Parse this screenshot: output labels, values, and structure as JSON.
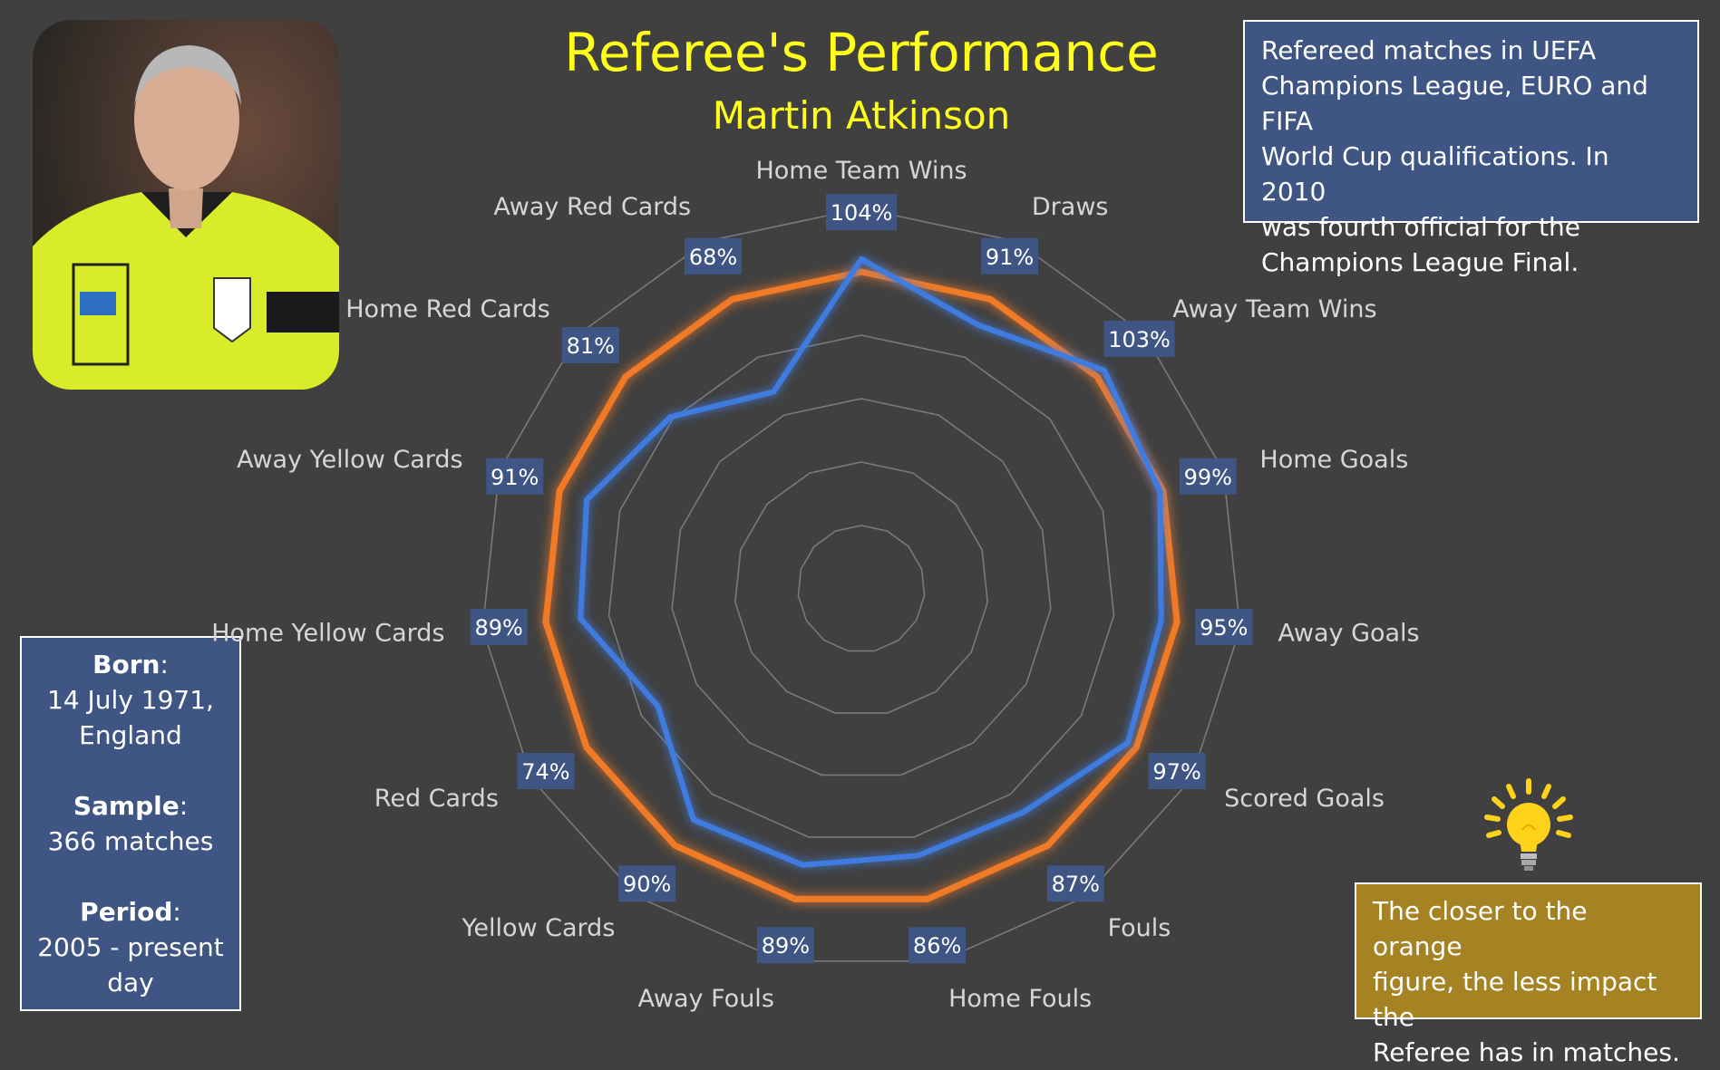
{
  "header": {
    "title": "Referee's Performance",
    "subtitle": "Martin Atkinson"
  },
  "info_box": {
    "lines": [
      "Refereed matches in UEFA",
      "Champions League, EURO and FIFA",
      "World Cup qualifications. In 2010",
      "was fourth official for the",
      "Champions League Final."
    ]
  },
  "bio": {
    "born_label": "Born",
    "born_value_line1": "14 July 1971,",
    "born_value_line2": "England",
    "sample_label": "Sample",
    "sample_value": "366 matches",
    "period_label": "Period",
    "period_value_line1": "2005 - present",
    "period_value_line2": "day"
  },
  "tip": {
    "lines": [
      "The closer to the orange",
      "figure, the less impact the",
      "Referee has in matches."
    ]
  },
  "colors": {
    "referee_line": "#3f7be0",
    "reference_line": "#f07a26",
    "label_box": "#3f5584",
    "title": "#ffff1a"
  },
  "chart_data": {
    "type": "radar",
    "categories": [
      "Home Team Wins",
      "Draws",
      "Away Team Wins",
      "Home Goals",
      "Away Goals",
      "Scored Goals",
      "Fouls",
      "Home Fouls",
      "Away Fouls",
      "Yellow Cards",
      "Red Cards",
      "Home Yellow Cards",
      "Away Yellow Cards",
      "Home Red Cards",
      "Away Red Cards"
    ],
    "series": [
      {
        "color": "#3f7be0",
        "values": [
          104,
          91,
          103,
          99,
          95,
          97,
          87,
          86,
          89,
          90,
          74,
          89,
          91,
          81,
          68
        ],
        "labels": [
          "104%",
          "91%",
          "103%",
          "99%",
          "95%",
          "97%",
          "87%",
          "86%",
          "89%",
          "90%",
          "74%",
          "89%",
          "91%",
          "81%",
          "68%"
        ]
      },
      {
        "color": "#f07a26",
        "values": [
          100,
          100,
          100,
          100,
          100,
          100,
          100,
          100,
          100,
          100,
          100,
          100,
          100,
          100,
          100
        ]
      }
    ],
    "rlim": [
      0,
      120
    ],
    "grid": true,
    "legend": "none"
  }
}
